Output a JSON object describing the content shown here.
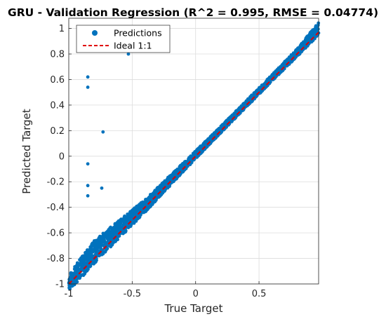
{
  "chart_data": {
    "type": "scatter",
    "title": "GRU - Validation Regression (R^2 = 0.995, RMSE = 0.04774)",
    "xlabel": "True Target",
    "ylabel": "Predicted Target",
    "xlim": [
      -1,
      0.97
    ],
    "ylim": [
      -1,
      1.08
    ],
    "xticks": [
      -1,
      -0.5,
      0,
      0.5
    ],
    "xtick_labels": [
      "-1",
      "-0.5",
      "0",
      "0.5"
    ],
    "yticks": [
      -1,
      -0.8,
      -0.6,
      -0.4,
      -0.2,
      0,
      0.2,
      0.4,
      0.6,
      0.8,
      1
    ],
    "ytick_labels": [
      "-1",
      "-0.8",
      "-0.6",
      "-0.4",
      "-0.2",
      "0",
      "0.2",
      "0.4",
      "0.6",
      "0.8",
      "1"
    ],
    "grid": true,
    "legend_position": "top-left",
    "series": [
      {
        "name": "Predictions",
        "kind": "points",
        "color": "#0072BD",
        "band": [
          [
            -1.0,
            -0.99,
            0.06
          ],
          [
            -0.9,
            -0.87,
            0.08
          ],
          [
            -0.8,
            -0.75,
            0.09
          ],
          [
            -0.7,
            -0.66,
            0.08
          ],
          [
            -0.6,
            -0.57,
            0.07
          ],
          [
            -0.5,
            -0.48,
            0.06
          ],
          [
            -0.4,
            -0.39,
            0.05
          ],
          [
            -0.3,
            -0.29,
            0.045
          ],
          [
            -0.2,
            -0.19,
            0.04
          ],
          [
            -0.1,
            -0.09,
            0.035
          ],
          [
            0.0,
            0.01,
            0.03
          ],
          [
            0.2,
            0.21,
            0.025
          ],
          [
            0.4,
            0.41,
            0.025
          ],
          [
            0.6,
            0.61,
            0.025
          ],
          [
            0.8,
            0.81,
            0.03
          ],
          [
            0.97,
            1.0,
            0.05
          ]
        ],
        "outliers": [
          [
            -0.85,
            0.62
          ],
          [
            -0.85,
            0.54
          ],
          [
            -0.53,
            0.8
          ],
          [
            -0.73,
            0.19
          ],
          [
            -0.85,
            -0.06
          ],
          [
            -0.85,
            -0.23
          ],
          [
            -0.74,
            -0.25
          ],
          [
            -0.85,
            -0.31
          ]
        ]
      },
      {
        "name": "Ideal 1:1",
        "kind": "line",
        "color": "#E00000",
        "x": [
          -1,
          0.97
        ],
        "y": [
          -1,
          0.97
        ]
      }
    ]
  }
}
